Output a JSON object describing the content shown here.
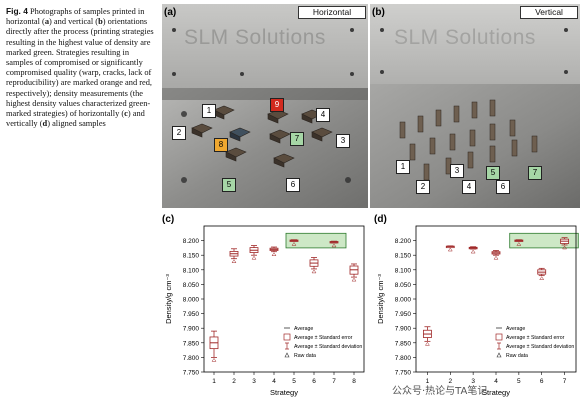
{
  "caption": {
    "fig_label": "Fig. 4",
    "text_1": "Photographs of samples printed in horizontal (",
    "a": "a",
    "text_2": ") and vertical (",
    "b": "b",
    "text_3": ") orientations directly after the process (printing strategies resulting in the highest value of density are marked green. Strategies resulting in samples of compromised or significantly compromised quality (warp, cracks, lack of reproducibility) are marked orange and red, respectively); density measurements (the highest density values characterized green-marked strategies) of horizontally (",
    "c": "c",
    "text_4": ") and vertically (",
    "d": "d",
    "text_5": ") aligned samples"
  },
  "photos": {
    "a": {
      "letter": "(a)",
      "orientation": "Horizontal",
      "plate_text": "SLM Solutions",
      "tags": [
        {
          "label": "1",
          "color": "white"
        },
        {
          "label": "2",
          "color": "white"
        },
        {
          "label": "3",
          "color": "white"
        },
        {
          "label": "4",
          "color": "white"
        },
        {
          "label": "5",
          "color": "green"
        },
        {
          "label": "6",
          "color": "white"
        },
        {
          "label": "7",
          "color": "green"
        },
        {
          "label": "8",
          "color": "orange"
        },
        {
          "label": "9",
          "color": "red"
        }
      ]
    },
    "b": {
      "letter": "(b)",
      "orientation": "Vertical",
      "plate_text": "SLM Solutions",
      "tags": [
        {
          "label": "1",
          "color": "white"
        },
        {
          "label": "2",
          "color": "white"
        },
        {
          "label": "3",
          "color": "white"
        },
        {
          "label": "4",
          "color": "white"
        },
        {
          "label": "5",
          "color": "green"
        },
        {
          "label": "6",
          "color": "white"
        },
        {
          "label": "7",
          "color": "green"
        }
      ]
    }
  },
  "chart_data": [
    {
      "panel": "(c)",
      "type": "scatter",
      "xlabel": "Strategy",
      "ylabel": "Density/g cm⁻³",
      "ylim": [
        7.75,
        8.25
      ],
      "yticks": [
        "7.750",
        "7.800",
        "7.850",
        "7.900",
        "7.950",
        "8.000",
        "8.050",
        "8.100",
        "8.150",
        "8.200"
      ],
      "xticks": [
        "1",
        "2",
        "3",
        "4",
        "5",
        "6",
        "7",
        "8"
      ],
      "x": [
        1,
        2,
        3,
        4,
        5,
        6,
        7,
        8
      ],
      "average": [
        7.85,
        8.155,
        8.167,
        8.17,
        8.2,
        8.123,
        8.195,
        8.1
      ],
      "se_low": [
        7.83,
        8.147,
        8.159,
        8.166,
        8.198,
        8.112,
        8.193,
        8.085
      ],
      "se_high": [
        7.87,
        8.163,
        8.176,
        8.174,
        8.202,
        8.134,
        8.197,
        8.113
      ],
      "sd_low": [
        7.8,
        8.138,
        8.15,
        8.162,
        8.197,
        8.103,
        8.192,
        8.075
      ],
      "sd_high": [
        7.89,
        8.172,
        8.183,
        8.178,
        8.203,
        8.142,
        8.198,
        8.12
      ],
      "highlight_x": [
        4.6,
        7.6
      ],
      "legend": [
        "Average",
        "Average ± Standard error",
        "Average ± Standard deviation",
        "Raw data"
      ]
    },
    {
      "panel": "(d)",
      "type": "scatter",
      "xlabel": "Strategy",
      "ylabel": "Density/g cm⁻³",
      "ylim": [
        7.75,
        8.25
      ],
      "yticks": [
        "7.750",
        "7.800",
        "7.850",
        "7.900",
        "7.950",
        "8.000",
        "8.050",
        "8.100",
        "8.150",
        "8.200"
      ],
      "xticks": [
        "1",
        "2",
        "3",
        "4",
        "5",
        "6",
        "7"
      ],
      "x": [
        1,
        2,
        3,
        4,
        5,
        6,
        7
      ],
      "average": [
        7.88,
        8.18,
        8.175,
        8.158,
        8.2,
        8.092,
        8.198
      ],
      "se_low": [
        7.868,
        8.179,
        8.173,
        8.154,
        8.198,
        8.085,
        8.19
      ],
      "se_high": [
        7.893,
        8.181,
        8.177,
        8.162,
        8.202,
        8.1,
        8.205
      ],
      "sd_low": [
        7.855,
        8.178,
        8.171,
        8.15,
        8.197,
        8.08,
        8.185
      ],
      "sd_high": [
        7.905,
        8.182,
        8.179,
        8.166,
        8.203,
        8.105,
        8.21
      ],
      "highlight_x": [
        4.6,
        7.6
      ],
      "legend": [
        "Average",
        "Average ± Standard error",
        "Average ± Standard deviation",
        "Raw data"
      ]
    }
  ],
  "colors": {
    "series": "#a02828",
    "highlight_fill": "#cde8c6",
    "highlight_stroke": "#2d7a2d"
  },
  "watermark": "公众号·热论与TA笔记"
}
